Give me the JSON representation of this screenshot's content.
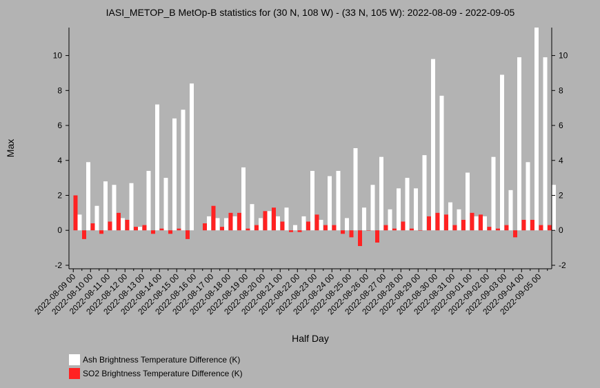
{
  "chart_data": {
    "type": "bar",
    "title": "IASI_METOP_B MetOp-B statistics for (30 N, 108 W) - (33 N, 105 W): 2022-08-09 - 2022-09-05",
    "xlabel": "Half Day",
    "ylabel": "Max",
    "ylim": [
      -2.2,
      11.6
    ],
    "yticks": [
      -2,
      0,
      2,
      4,
      6,
      8,
      10
    ],
    "tick_labels": [
      "2022-08-09 00",
      "2022-08-10 00",
      "2022-08-11 00",
      "2022-08-12 00",
      "2022-08-13 00",
      "2022-08-14 00",
      "2022-08-15 00",
      "2022-08-16 00",
      "2022-08-17 00",
      "2022-08-18 00",
      "2022-08-19 00",
      "2022-08-20 00",
      "2022-08-21 00",
      "2022-08-22 00",
      "2022-08-23 00",
      "2022-08-24 00",
      "2022-08-25 00",
      "2022-08-26 00",
      "2022-08-27 00",
      "2022-08-28 00",
      "2022-08-29 00",
      "2022-08-30 00",
      "2022-08-31 00",
      "2022-09-01 00",
      "2022-09-02 00",
      "2022-09-03 00",
      "2022-09-04 00",
      "2022-09-05 00"
    ],
    "legend_position": "bottom-left",
    "grid": false,
    "series": [
      {
        "name": "Ash Brightness Temperature Difference (K)",
        "color": "#ffffff",
        "values": [
          0.9,
          3.9,
          1.4,
          2.8,
          2.6,
          0.7,
          2.7,
          0.2,
          3.4,
          7.2,
          3.0,
          6.4,
          6.9,
          8.4,
          null,
          0.8,
          0.7,
          0.7,
          0.8,
          3.6,
          1.5,
          0.7,
          1.1,
          0.8,
          1.3,
          0.3,
          0.8,
          3.4,
          0.6,
          3.1,
          3.4,
          0.7,
          4.7,
          1.3,
          2.6,
          4.2,
          1.2,
          2.4,
          3.0,
          2.4,
          4.3,
          9.8,
          7.7,
          1.6,
          1.2,
          3.3,
          0.8,
          0.8,
          4.2,
          8.9,
          2.3,
          9.9,
          3.9,
          11.6,
          9.9,
          2.6
        ]
      },
      {
        "name": "SO2 Brightness Temperature Difference (K)",
        "color": "#ff2222",
        "values": [
          2.0,
          -0.5,
          0.4,
          -0.2,
          0.5,
          1.0,
          0.6,
          0.2,
          0.3,
          -0.2,
          0.1,
          -0.2,
          0.1,
          -0.5,
          null,
          0.4,
          1.4,
          0.2,
          1.0,
          1.0,
          0.1,
          0.3,
          1.1,
          1.3,
          0.5,
          -0.1,
          -0.1,
          0.5,
          0.9,
          0.3,
          0.3,
          -0.2,
          -0.4,
          -0.9,
          0.0,
          -0.7,
          0.3,
          0.1,
          0.5,
          0.1,
          0.0,
          0.8,
          1.0,
          0.9,
          0.3,
          0.6,
          1.0,
          0.9,
          0.2,
          0.1,
          0.3,
          -0.4,
          0.6,
          0.6,
          0.3,
          0.3
        ]
      }
    ]
  }
}
